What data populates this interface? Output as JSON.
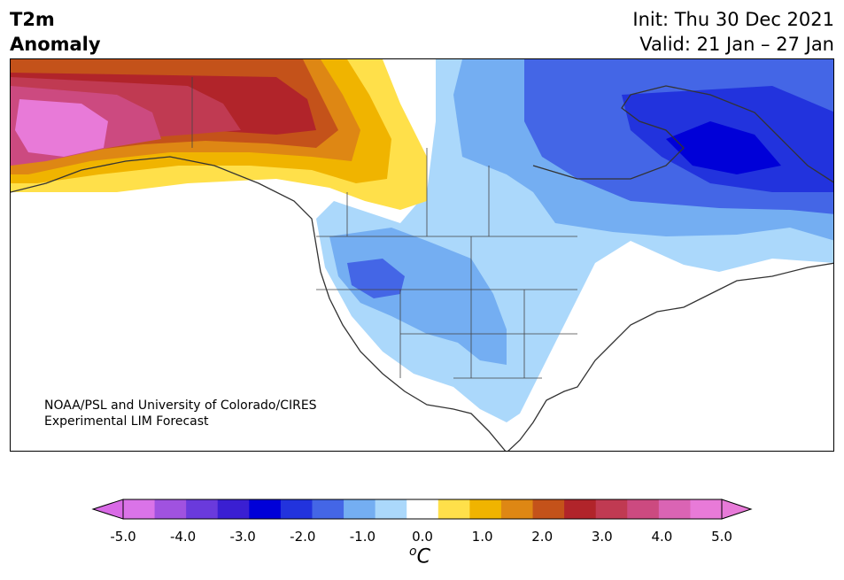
{
  "header": {
    "title_line1": "T2m",
    "title_line2": "Anomaly",
    "init": "Init: Thu 30 Dec 2021",
    "valid": "Valid: 21 Jan – 27 Jan"
  },
  "map": {
    "credit_line1": "NOAA/PSL and University of Colorado/CIRES",
    "credit_line2": "Experimental LIM Forecast"
  },
  "colorbar": {
    "units_symbol": "o",
    "units_letter": "C",
    "ticks": [
      "-5.0",
      "-4.0",
      "-3.0",
      "-2.0",
      "-1.0",
      "0.0",
      "1.0",
      "2.0",
      "3.0",
      "4.0",
      "5.0"
    ],
    "colors": [
      "#da73e8",
      "#a052e0",
      "#6a3adc",
      "#3a1fd2",
      "#0000d8",
      "#2233dd",
      "#4466e6",
      "#74aef2",
      "#abd8fb",
      "#ffffff",
      "#ffe04a",
      "#f0b400",
      "#de8714",
      "#c4521a",
      "#b1242a",
      "#c03a52",
      "#cc4a80",
      "#da64b4",
      "#e87ad8"
    ],
    "under_color": "#d96ae6",
    "over_color": "#e77ad8"
  }
}
